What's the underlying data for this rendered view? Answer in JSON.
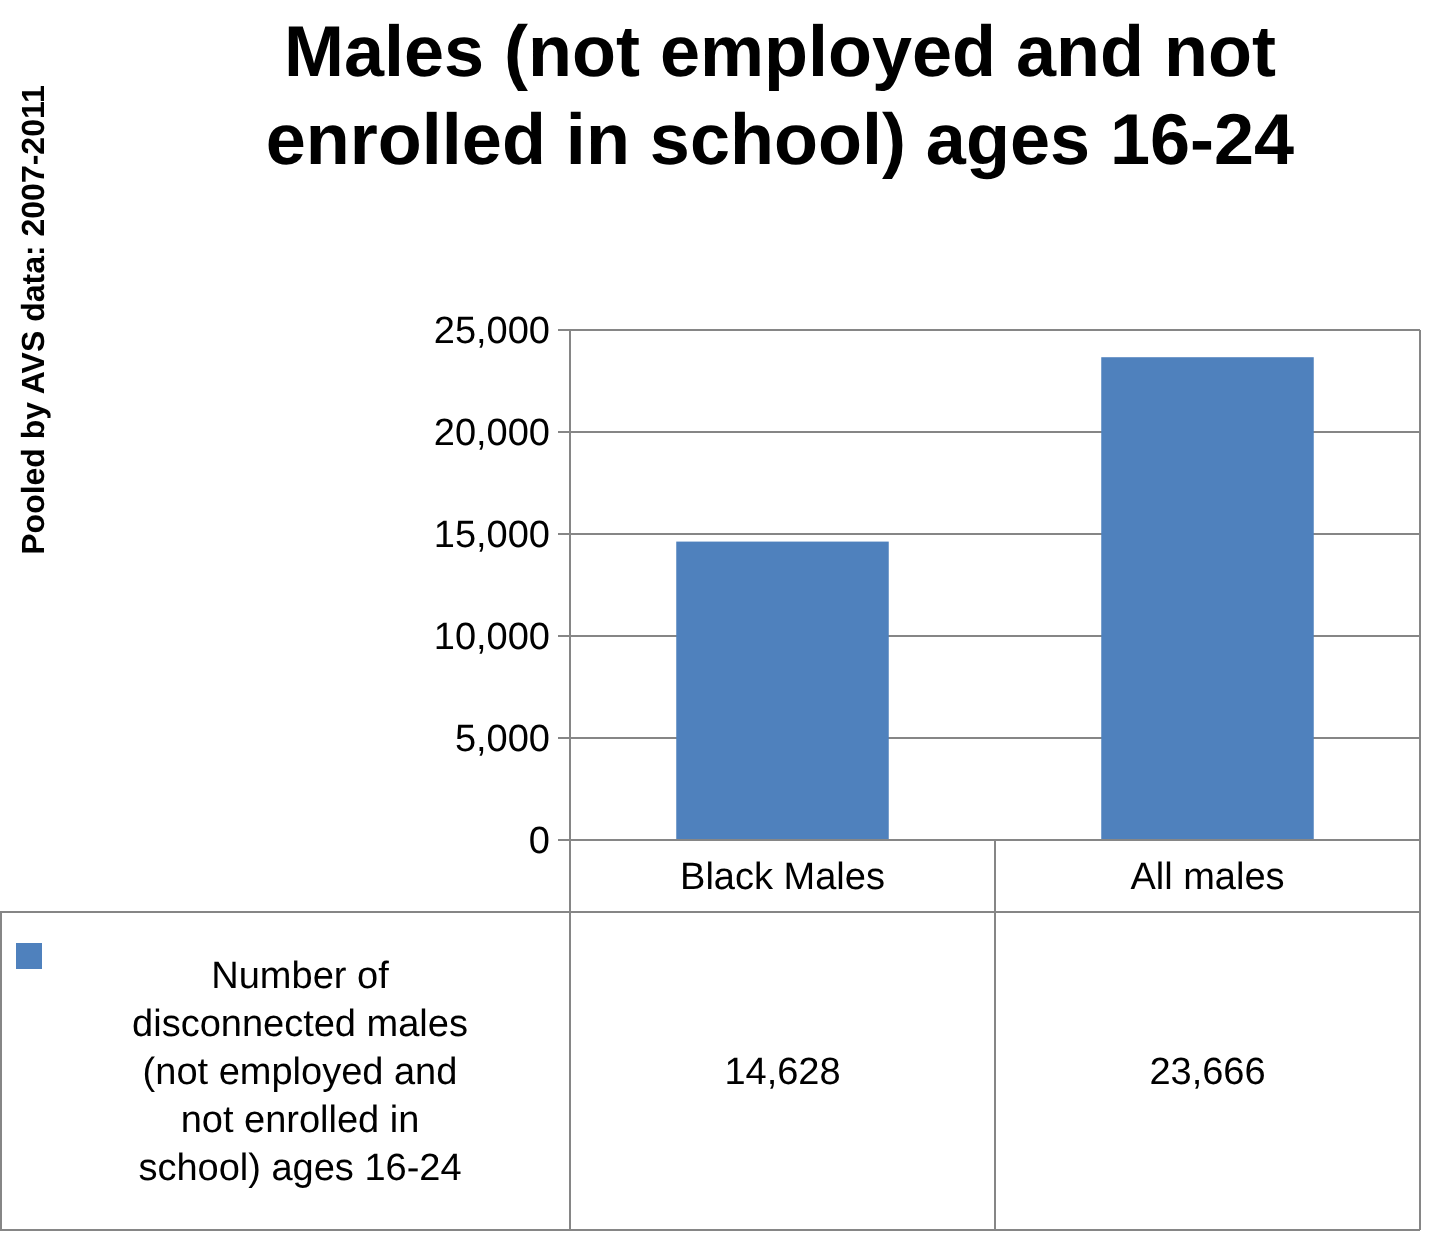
{
  "chart_data": {
    "type": "bar",
    "title": "Males (not employed and not enrolled in school) ages 16-24",
    "annotations": [
      "Pooled by AVS data: 2007-2011"
    ],
    "categories": [
      "Black Males",
      "All males"
    ],
    "series": [
      {
        "name": "Number of disconnected males (not employed and not enrolled in school) ages 16-24",
        "color": "#4f81bd",
        "values": [
          14628,
          23666
        ],
        "value_labels": [
          "14,628",
          "23,666"
        ]
      }
    ],
    "ylim": [
      0,
      25000
    ],
    "yticks": [
      {
        "value": 0,
        "label": "0"
      },
      {
        "value": 5000,
        "label": "5,000"
      },
      {
        "value": 10000,
        "label": "10,000"
      },
      {
        "value": 15000,
        "label": "15,000"
      },
      {
        "value": 20000,
        "label": "20,000"
      },
      {
        "value": 25000,
        "label": "25,000"
      }
    ],
    "grid": "y",
    "legend": "bottom"
  }
}
